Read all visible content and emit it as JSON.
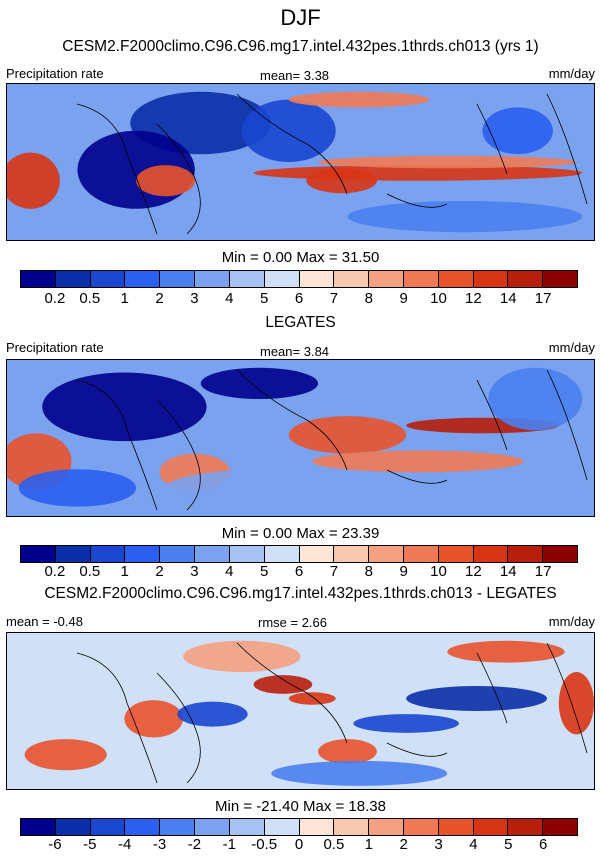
{
  "title": "DJF",
  "colors": {
    "seq": [
      "#00008c",
      "#0a2fa8",
      "#1a46d0",
      "#2a5ff0",
      "#4a80f0",
      "#7aa2ef",
      "#a6c2f2",
      "#cfe0f7",
      "#fde6d6",
      "#f8c8b0",
      "#f4a182",
      "#ef7a55",
      "#e8532c",
      "#d83515",
      "#b61f0c",
      "#8c0000"
    ],
    "div": [
      "#00008c",
      "#0a2fa8",
      "#1a46d0",
      "#2a5ff0",
      "#4a80f0",
      "#7aa2ef",
      "#a6c2f2",
      "#cfe0f7",
      "#fde6d6",
      "#f8c8b0",
      "#f4a182",
      "#ef7a55",
      "#e8532c",
      "#d83515",
      "#b61f0c",
      "#8c0000"
    ]
  },
  "chart_data": [
    {
      "type": "heatmap",
      "title": "CESM2.F2000climo.C96.C96.mg17.intel.432pes.1thrds.ch013 (yrs 1)",
      "left_label": "Precipitation rate",
      "stat_label": "mean=   3.38",
      "units": "mm/day",
      "minmax": "Min =   0.00 Max =  31.50",
      "min": 0.0,
      "max": 31.5,
      "mean": 3.38,
      "levels": [
        "0.2",
        "0.5",
        "1",
        "2",
        "3",
        "4",
        "5",
        "6",
        "7",
        "8",
        "9",
        "10",
        "12",
        "14",
        "17"
      ]
    },
    {
      "type": "heatmap",
      "title": "LEGATES",
      "left_label": "Precipitation rate",
      "stat_label": "mean=   3.84",
      "units": "mm/day",
      "minmax": "Min =   0.00 Max =  23.39",
      "min": 0.0,
      "max": 23.39,
      "mean": 3.84,
      "levels": [
        "0.2",
        "0.5",
        "1",
        "2",
        "3",
        "4",
        "5",
        "6",
        "7",
        "8",
        "9",
        "10",
        "12",
        "14",
        "17"
      ]
    },
    {
      "type": "heatmap",
      "title": "CESM2.F2000climo.C96.C96.mg17.intel.432pes.1thrds.ch013 - LEGATES",
      "left_label": "mean =  -0.48",
      "stat_label": "rmse =   2.66",
      "units": "mm/day",
      "minmax": "Min = -21.40 Max =  18.38",
      "min": -21.4,
      "max": 18.38,
      "mean": -0.48,
      "rmse": 2.66,
      "levels": [
        "-6",
        "-5",
        "-4",
        "-3",
        "-2",
        "-1",
        "-0.5",
        "0",
        "0.5",
        "1",
        "2",
        "3",
        "4",
        "5",
        "6"
      ]
    }
  ]
}
